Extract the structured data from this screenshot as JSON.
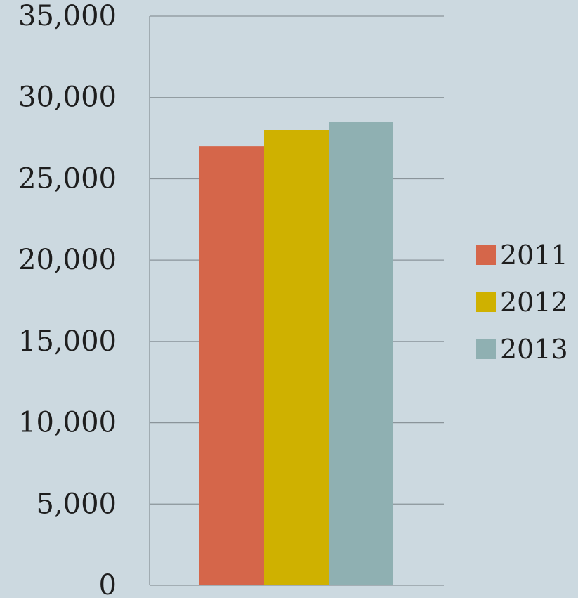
{
  "chart_data": {
    "type": "bar",
    "title": "",
    "xlabel": "",
    "ylabel": "",
    "ylim": [
      0,
      35000
    ],
    "y_ticks": [
      {
        "value": 0,
        "label": "0"
      },
      {
        "value": 5000,
        "label": "5,000"
      },
      {
        "value": 10000,
        "label": "10,000"
      },
      {
        "value": 15000,
        "label": "15,000"
      },
      {
        "value": 20000,
        "label": "20,000"
      },
      {
        "value": 25000,
        "label": "25,000"
      },
      {
        "value": 30000,
        "label": "30,000"
      },
      {
        "value": 35000,
        "label": "35,000"
      }
    ],
    "grid": true,
    "legend_position": "right",
    "series": [
      {
        "name": "2011",
        "value": 27000,
        "color": "#d5664a"
      },
      {
        "name": "2012",
        "value": 28000,
        "color": "#cfb100"
      },
      {
        "name": "2013",
        "value": 28500,
        "color": "#8fb0b2"
      }
    ]
  }
}
